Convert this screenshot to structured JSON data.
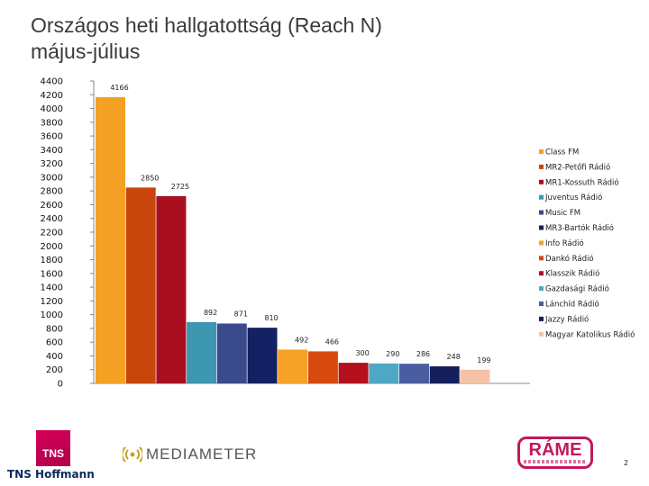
{
  "header": {
    "title_line1": "Országos heti hallgatottság (Reach N)",
    "title_line2": "május-július"
  },
  "footer": {
    "tns_logo_text": "TNS",
    "tns_caption": "TNS Hoffmann",
    "mediameter_text": "MEDIAMETER",
    "rame_text": "RÁME",
    "page_number": "2"
  },
  "chart_data": {
    "type": "bar",
    "title": "Országos heti hallgatottság (Reach N) május-július",
    "ylim": [
      0,
      4400
    ],
    "ytick_step": 200,
    "grid": false,
    "legend_position": "right",
    "categories": [
      "Class FM",
      "MR2-Petőfi Rádió",
      "MR1-Kossuth Rádió",
      "Juventus Rádió",
      "Music FM",
      "MR3-Bartók Rádió",
      "Info Rádió",
      "Dankó Rádió",
      "Klasszik Rádió",
      "Gazdasági Rádió",
      "Lánchíd Rádió",
      "Jazzy Rádió",
      "Magyar Katolikus Rádió"
    ],
    "values": [
      4166,
      2850,
      2725,
      892,
      871,
      810,
      492,
      466,
      300,
      290,
      286,
      248,
      199
    ],
    "colors": [
      "#f4a024",
      "#c8460c",
      "#a80f1f",
      "#3d97b0",
      "#3b4a8c",
      "#132062",
      "#f6a227",
      "#d64a10",
      "#b5101e",
      "#4fa6c5",
      "#4a5da0",
      "#151f5c",
      "#f5c2a6"
    ]
  }
}
